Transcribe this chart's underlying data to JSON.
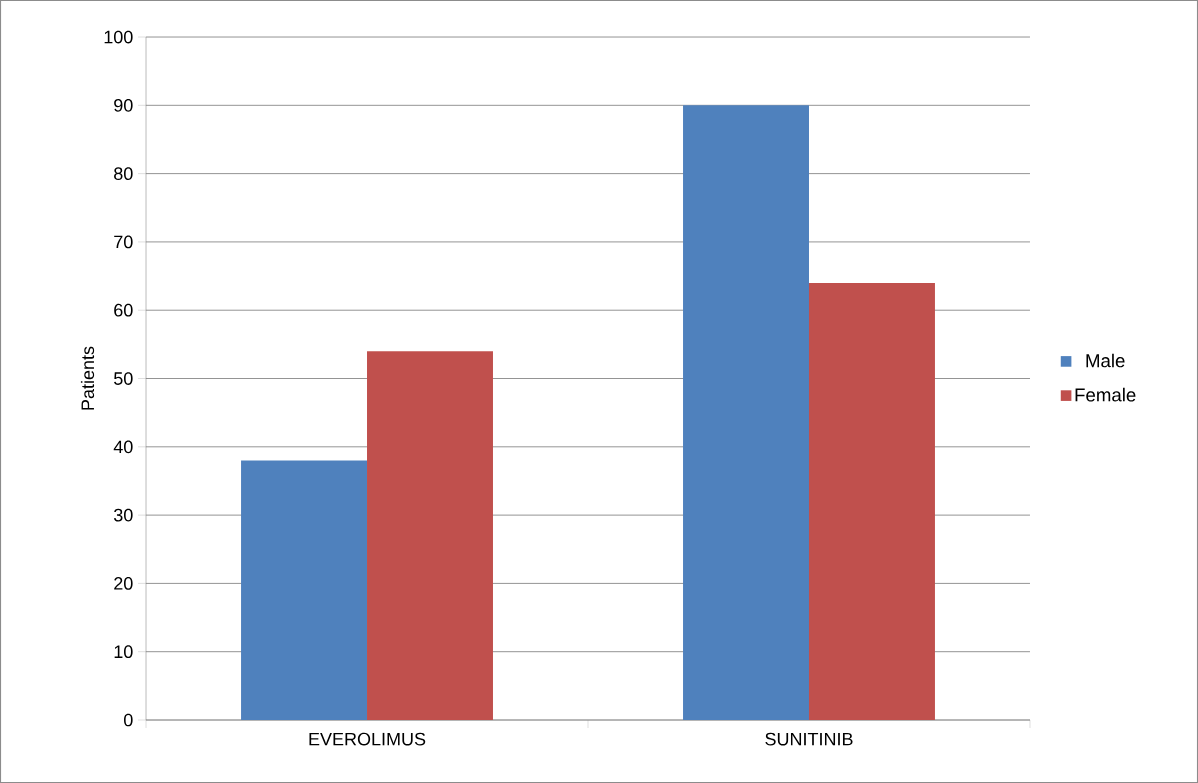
{
  "chart_data": {
    "type": "bar",
    "ylabel": "Patients",
    "categories": [
      "EVEROLIMUS",
      "SUNITINIB"
    ],
    "series": [
      {
        "name": "Male",
        "color": "#4f81bd",
        "values": [
          38,
          90
        ]
      },
      {
        "name": "Female",
        "color": "#c0504d",
        "values": [
          54,
          64
        ]
      }
    ],
    "ylim": [
      0,
      100
    ],
    "yticks": [
      0,
      10,
      20,
      30,
      40,
      50,
      60,
      70,
      80,
      90,
      100
    ],
    "grid": "y",
    "legend": "right"
  }
}
